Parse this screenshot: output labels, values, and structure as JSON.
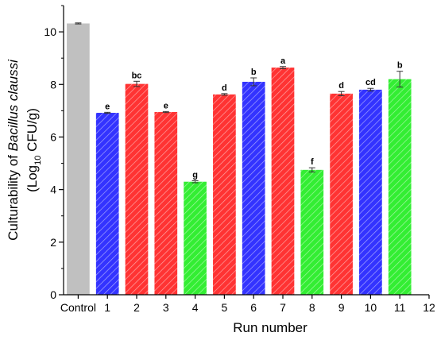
{
  "chart_data": {
    "type": "bar",
    "xlabel": "Run number",
    "ylabel_line1_prefix": "Culturability of ",
    "ylabel_line1_italic": "Bacillus claussi",
    "ylabel_line2_prefix": "(Log",
    "ylabel_line2_sub": "10",
    "ylabel_line2_suffix": " CFU/g)",
    "ylim": [
      0,
      11
    ],
    "yticks": [
      0,
      2,
      4,
      6,
      8,
      10
    ],
    "xlim": [
      -0.5,
      12
    ],
    "xticks": [
      {
        "x": 0,
        "label": "Control"
      },
      {
        "x": 1,
        "label": "1"
      },
      {
        "x": 2,
        "label": "2"
      },
      {
        "x": 3,
        "label": "3"
      },
      {
        "x": 4,
        "label": "4"
      },
      {
        "x": 5,
        "label": "5"
      },
      {
        "x": 6,
        "label": "6"
      },
      {
        "x": 7,
        "label": "7"
      },
      {
        "x": 8,
        "label": "8"
      },
      {
        "x": 9,
        "label": "9"
      },
      {
        "x": 10,
        "label": "10"
      },
      {
        "x": 11,
        "label": "11"
      },
      {
        "x": 12,
        "label": "12"
      }
    ],
    "grid": false,
    "colors": {
      "gray": "#c0c0c0",
      "blue": "#3333ff",
      "red": "#ff3333",
      "green": "#33ee33"
    },
    "bars": [
      {
        "x": 0,
        "value": 10.32,
        "error": 0.02,
        "color": "gray",
        "hatch": false,
        "label": ""
      },
      {
        "x": 1,
        "value": 6.92,
        "error": 0.02,
        "color": "blue",
        "hatch": true,
        "label": "e"
      },
      {
        "x": 2,
        "value": 8.02,
        "error": 0.1,
        "color": "red",
        "hatch": true,
        "label": "bc"
      },
      {
        "x": 3,
        "value": 6.95,
        "error": 0.02,
        "color": "red",
        "hatch": true,
        "label": "e"
      },
      {
        "x": 4,
        "value": 4.3,
        "error": 0.04,
        "color": "green",
        "hatch": true,
        "label": "g"
      },
      {
        "x": 5,
        "value": 7.62,
        "error": 0.03,
        "color": "red",
        "hatch": true,
        "label": "d"
      },
      {
        "x": 6,
        "value": 8.1,
        "error": 0.15,
        "color": "blue",
        "hatch": true,
        "label": "b"
      },
      {
        "x": 7,
        "value": 8.64,
        "error": 0.04,
        "color": "red",
        "hatch": true,
        "label": "a"
      },
      {
        "x": 8,
        "value": 4.75,
        "error": 0.08,
        "color": "green",
        "hatch": true,
        "label": "f"
      },
      {
        "x": 9,
        "value": 7.65,
        "error": 0.08,
        "color": "red",
        "hatch": true,
        "label": "d"
      },
      {
        "x": 10,
        "value": 7.8,
        "error": 0.05,
        "color": "blue",
        "hatch": true,
        "label": "cd"
      },
      {
        "x": 11,
        "value": 8.2,
        "error": 0.3,
        "color": "green",
        "hatch": true,
        "label": "b"
      }
    ]
  }
}
